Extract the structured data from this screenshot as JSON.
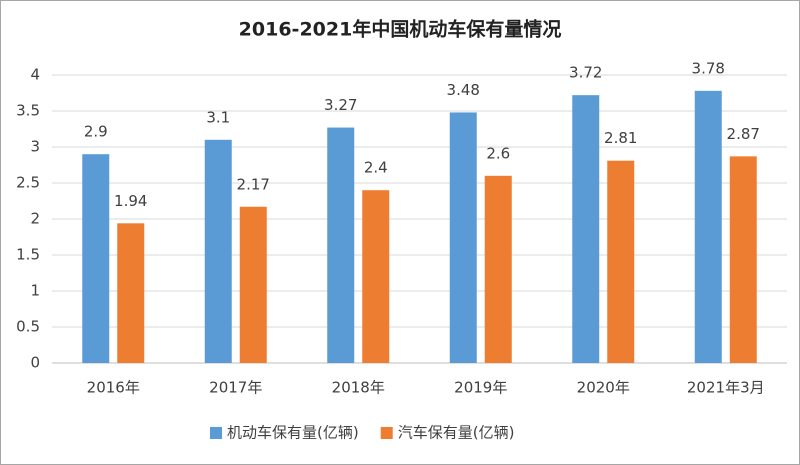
{
  "chart_data": {
    "type": "bar",
    "title": "2016-2021年中国机动车保有量情况",
    "categories": [
      "2016年",
      "2017年",
      "2018年",
      "2019年",
      "2020年",
      "2021年3月"
    ],
    "series": [
      {
        "name": "机动车保有量(亿辆)",
        "color": "#5b9bd5",
        "values": [
          2.9,
          3.1,
          3.27,
          3.48,
          3.72,
          3.78
        ]
      },
      {
        "name": "汽车保有量(亿辆)",
        "color": "#ed7d31",
        "values": [
          1.94,
          2.17,
          2.4,
          2.6,
          2.81,
          2.87
        ]
      }
    ],
    "ylim": [
      0,
      4
    ],
    "yticks": [
      0,
      0.5,
      1,
      1.5,
      2,
      2.5,
      3,
      3.5,
      4
    ],
    "grid": true,
    "legend": "bottom"
  }
}
